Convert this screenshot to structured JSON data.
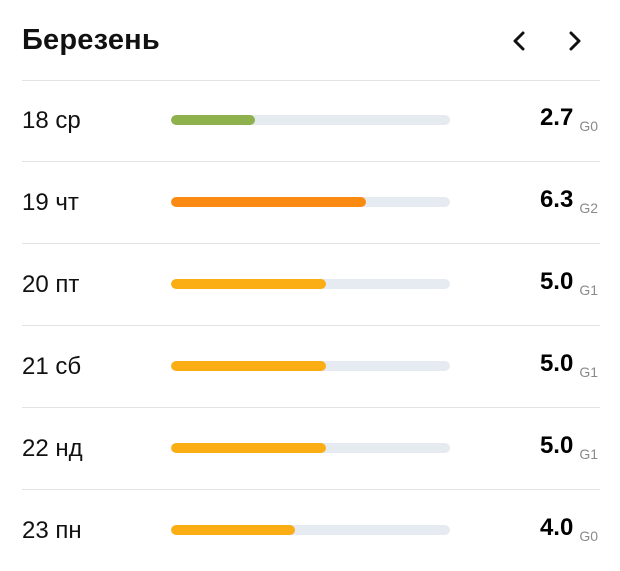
{
  "header": {
    "title": "Березень",
    "prev_icon": "chevron-left-icon",
    "next_icon": "chevron-right-icon"
  },
  "days": [
    {
      "label": "18 ср",
      "value": "2.7",
      "grade": "G0",
      "level": 0.3,
      "color": "#8eb04d"
    },
    {
      "label": "19 чт",
      "value": "6.3",
      "grade": "G2",
      "level": 0.7,
      "color": "#fb8a12"
    },
    {
      "label": "20 пт",
      "value": "5.0",
      "grade": "G1",
      "level": 0.555,
      "color": "#fbad14"
    },
    {
      "label": "21 сб",
      "value": "5.0",
      "grade": "G1",
      "level": 0.555,
      "color": "#fbad14"
    },
    {
      "label": "22 нд",
      "value": "5.0",
      "grade": "G1",
      "level": 0.555,
      "color": "#fbad14"
    },
    {
      "label": "23 пн",
      "value": "4.0",
      "grade": "G0",
      "level": 0.445,
      "color": "#fbad14"
    }
  ]
}
